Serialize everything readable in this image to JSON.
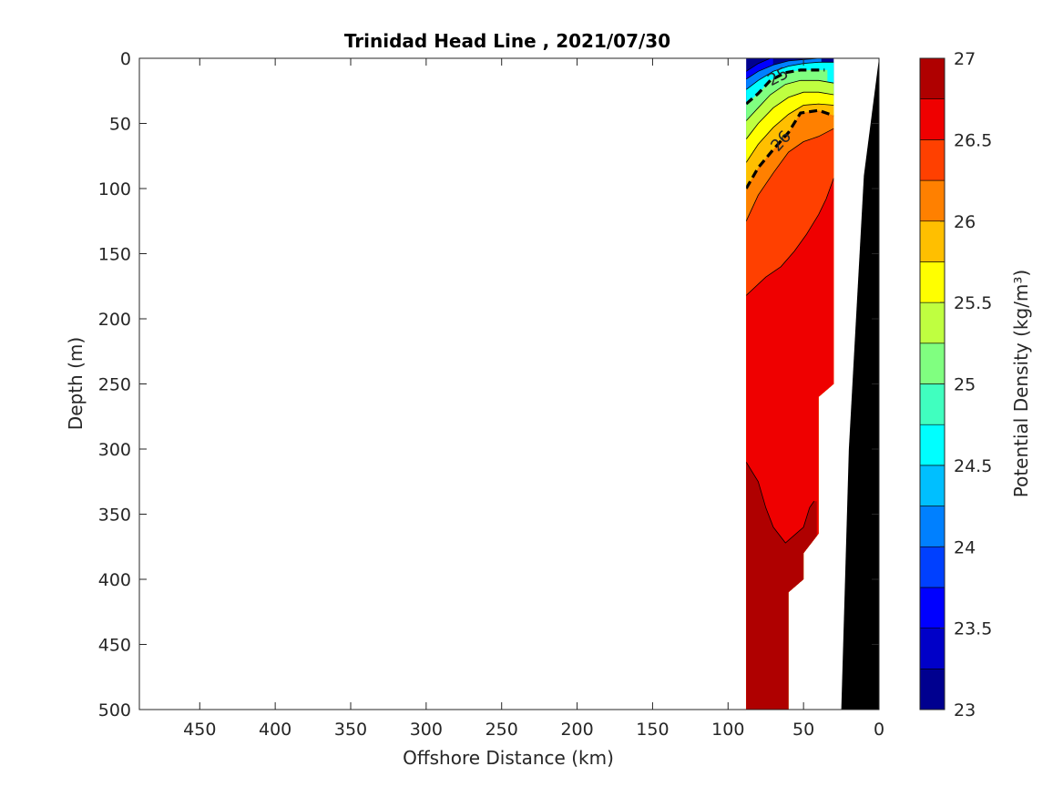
{
  "chart_data": {
    "type": "contour",
    "title": "Trinidad Head Line , 2021/07/30",
    "xlabel": "Offshore Distance (km)",
    "ylabel": "Depth (m)",
    "colorbar_label": "Potential Density (kg/m³)",
    "xlim": [
      490,
      0
    ],
    "ylim": [
      0,
      500
    ],
    "xticks": [
      450,
      400,
      350,
      300,
      250,
      200,
      150,
      100,
      50,
      0
    ],
    "xtick_labels": [
      "450",
      "400",
      "350",
      "300",
      "250",
      "200",
      "150",
      "100",
      "50",
      "0"
    ],
    "yticks": [
      0,
      50,
      100,
      150,
      200,
      250,
      300,
      350,
      400,
      450,
      500
    ],
    "ytick_labels": [
      "0",
      "50",
      "100",
      "150",
      "200",
      "250",
      "300",
      "350",
      "400",
      "450",
      "500"
    ],
    "colorbar_range": [
      23,
      27
    ],
    "colorbar_ticks": [
      23,
      23.5,
      24,
      24.5,
      25,
      25.5,
      26,
      26.5,
      27
    ],
    "colorbar_tick_labels": [
      "23",
      "23.5",
      "24",
      "24.5",
      "25",
      "25.5",
      "26",
      "26.5",
      "27"
    ],
    "contour_step": 0.25,
    "levels": [
      {
        "from": 23.0,
        "to": 23.25,
        "color": "#00008f"
      },
      {
        "from": 23.25,
        "to": 23.5,
        "color": "#0000c8"
      },
      {
        "from": 23.5,
        "to": 23.75,
        "color": "#0000ff"
      },
      {
        "from": 23.75,
        "to": 24.0,
        "color": "#0040ff"
      },
      {
        "from": 24.0,
        "to": 24.25,
        "color": "#0080ff"
      },
      {
        "from": 24.25,
        "to": 24.5,
        "color": "#00bfff"
      },
      {
        "from": 24.5,
        "to": 24.75,
        "color": "#00ffff"
      },
      {
        "from": 24.75,
        "to": 25.0,
        "color": "#40ffbf"
      },
      {
        "from": 25.0,
        "to": 25.25,
        "color": "#80ff80"
      },
      {
        "from": 25.25,
        "to": 25.5,
        "color": "#bfff40"
      },
      {
        "from": 25.5,
        "to": 25.75,
        "color": "#ffff00"
      },
      {
        "from": 25.75,
        "to": 26.0,
        "color": "#ffbf00"
      },
      {
        "from": 26.0,
        "to": 26.25,
        "color": "#ff8000"
      },
      {
        "from": 26.25,
        "to": 26.5,
        "color": "#ff4000"
      },
      {
        "from": 26.5,
        "to": 26.75,
        "color": "#ef0000"
      },
      {
        "from": 26.75,
        "to": 27.0,
        "color": "#af0000"
      }
    ],
    "labeled_contours": [
      {
        "value": 25,
        "label": "25",
        "points": [
          [
            88,
            35
          ],
          [
            80,
            27
          ],
          [
            72,
            17
          ],
          [
            62,
            11
          ],
          [
            52,
            9
          ],
          [
            36,
            9
          ]
        ]
      },
      {
        "value": 26,
        "label": "26",
        "points": [
          [
            88,
            100
          ],
          [
            80,
            84
          ],
          [
            70,
            70
          ],
          [
            60,
            57
          ],
          [
            52,
            42
          ],
          [
            40,
            40
          ],
          [
            30,
            44
          ]
        ]
      }
    ],
    "isopycnals": [
      {
        "value": 23.5,
        "points": [
          [
            88,
            10
          ],
          [
            80,
            4
          ],
          [
            72,
            0
          ]
        ]
      },
      {
        "value": 24.0,
        "points": [
          [
            88,
            16
          ],
          [
            80,
            10
          ],
          [
            70,
            5
          ],
          [
            60,
            2
          ],
          [
            50,
            1
          ],
          [
            40,
            0
          ]
        ]
      },
      {
        "value": 24.5,
        "points": [
          [
            88,
            24
          ],
          [
            80,
            17
          ],
          [
            70,
            10
          ],
          [
            60,
            6
          ],
          [
            50,
            4
          ],
          [
            40,
            3
          ],
          [
            30,
            3
          ]
        ]
      },
      {
        "value": 25.25,
        "points": [
          [
            88,
            48
          ],
          [
            80,
            38
          ],
          [
            72,
            28
          ],
          [
            62,
            20
          ],
          [
            52,
            17
          ],
          [
            40,
            17
          ],
          [
            30,
            19
          ]
        ]
      },
      {
        "value": 25.5,
        "points": [
          [
            88,
            62
          ],
          [
            80,
            50
          ],
          [
            70,
            38
          ],
          [
            60,
            30
          ],
          [
            50,
            26
          ],
          [
            40,
            26
          ],
          [
            30,
            28
          ]
        ]
      },
      {
        "value": 25.75,
        "points": [
          [
            88,
            80
          ],
          [
            80,
            66
          ],
          [
            70,
            53
          ],
          [
            60,
            43
          ],
          [
            50,
            36
          ],
          [
            40,
            35
          ],
          [
            30,
            36
          ]
        ]
      },
      {
        "value": 26.25,
        "points": [
          [
            88,
            125
          ],
          [
            80,
            105
          ],
          [
            70,
            88
          ],
          [
            60,
            72
          ],
          [
            50,
            64
          ],
          [
            40,
            60
          ],
          [
            30,
            54
          ]
        ]
      },
      {
        "value": 26.5,
        "points": [
          [
            88,
            182
          ],
          [
            75,
            168
          ],
          [
            65,
            160
          ],
          [
            56,
            148
          ],
          [
            48,
            135
          ],
          [
            40,
            120
          ],
          [
            35,
            108
          ],
          [
            30,
            92
          ]
        ]
      },
      {
        "value": 26.75,
        "points": [
          [
            88,
            310
          ],
          [
            80,
            325
          ],
          [
            75,
            345
          ],
          [
            70,
            360
          ],
          [
            62,
            372
          ],
          [
            55,
            365
          ],
          [
            50,
            360
          ],
          [
            46,
            345
          ],
          [
            43,
            340
          ]
        ]
      }
    ],
    "data_region": {
      "offshore_edge_km": 88,
      "inshore_edge_km": 30,
      "bottom_steps": [
        [
          88,
          500
        ],
        [
          60,
          500
        ],
        [
          60,
          410
        ],
        [
          50,
          400
        ],
        [
          50,
          380
        ],
        [
          40,
          365
        ],
        [
          40,
          260
        ],
        [
          30,
          250
        ],
        [
          30,
          0
        ]
      ]
    },
    "bathymetry": {
      "color": "#000000",
      "points": [
        [
          0,
          0
        ],
        [
          10,
          90
        ],
        [
          20,
          300
        ],
        [
          25,
          500
        ],
        [
          0,
          500
        ]
      ]
    }
  }
}
